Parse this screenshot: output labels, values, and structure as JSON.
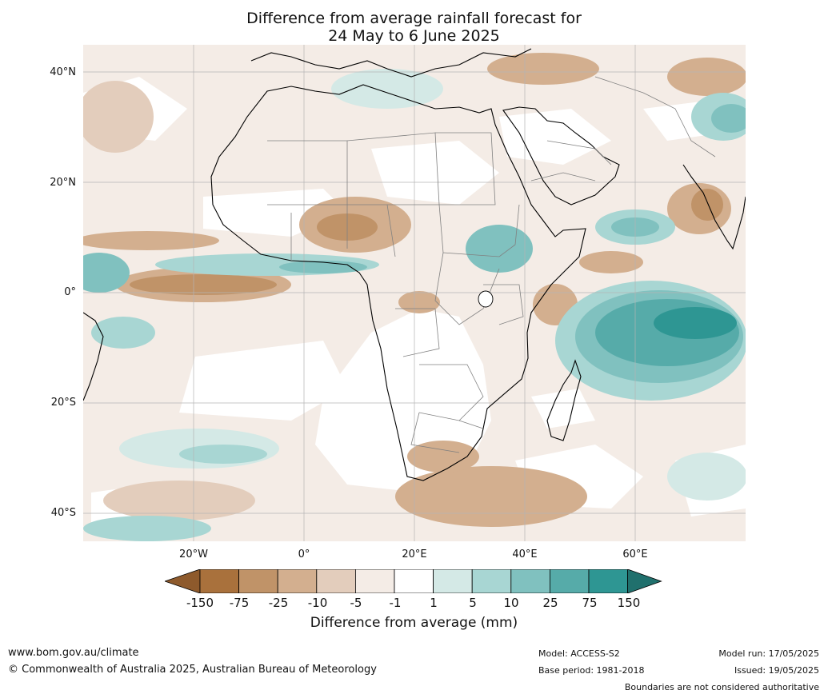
{
  "title": {
    "line1": "Difference from average rainfall forecast for",
    "line2": "24 May to 6 June 2025"
  },
  "map": {
    "lat_labels": [
      "40°N",
      "20°N",
      "0°",
      "20°S",
      "40°S"
    ],
    "lon_labels": [
      "20°W",
      "0°",
      "20°E",
      "40°E",
      "60°E"
    ],
    "colors": {
      "land_outline": "#000000",
      "borders": "#808080",
      "gridlines": "#b4b4b4"
    }
  },
  "colorbar": {
    "ticks": [
      "-150",
      "-75",
      "-25",
      "-10",
      "-5",
      "-1",
      "1",
      "5",
      "10",
      "25",
      "75",
      "150"
    ],
    "colors": [
      "#8e5a2c",
      "#a9713c",
      "#c09368",
      "#d3af8f",
      "#e3cdbc",
      "#f4ece6",
      "#ffffff",
      "#d4e9e6",
      "#a8d6d3",
      "#80c1bf",
      "#56aba9",
      "#2e9693",
      "#20706d"
    ],
    "label": "Difference from average (mm)"
  },
  "footer": {
    "website": "www.bom.gov.au/climate",
    "copyright": "© Commonwealth of Australia 2025, Australian Bureau of Meteorology",
    "model": "Model: ACCESS-S2",
    "base_period": "Base period: 1981-2018",
    "model_run": "Model run: 17/05/2025",
    "issued": "Issued: 19/05/2025",
    "disclaimer": "Boundaries are not considered authoritative"
  }
}
